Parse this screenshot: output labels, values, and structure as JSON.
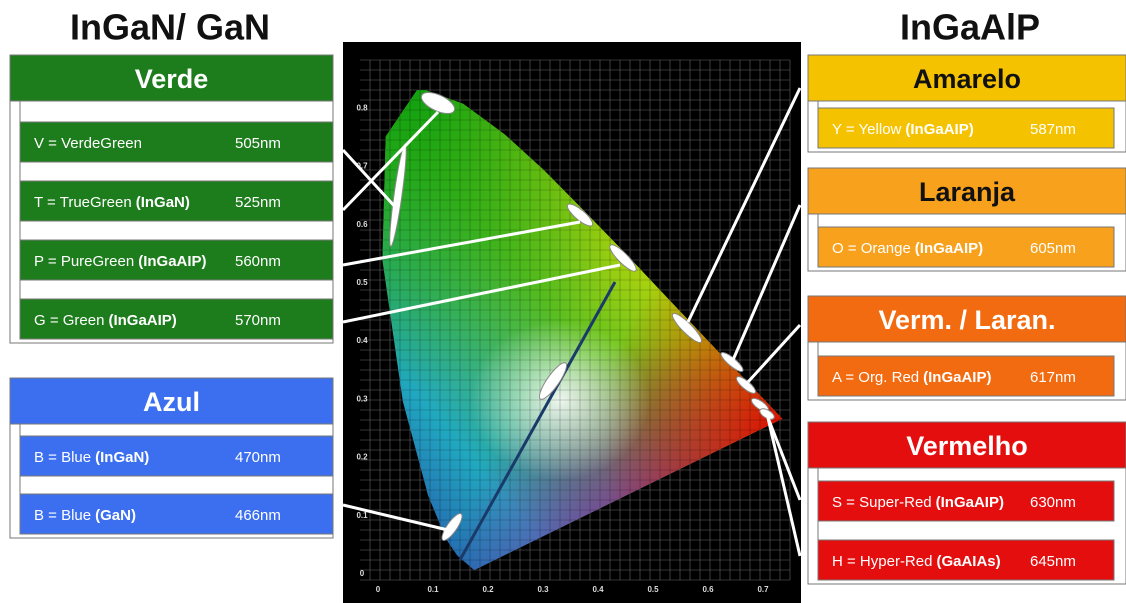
{
  "left_title": "InGaN/ GaN",
  "right_title": "InGaAlP",
  "groups": [
    {
      "title": "Verde",
      "items": [
        {
          "label": "V = VerdeGreen",
          "wavelength": "505nm"
        },
        {
          "label": "T = TrueGreen",
          "material": "(InGaN)",
          "wavelength": "525nm"
        },
        {
          "label": "P = PureGreen",
          "material": "(InGaAIP)",
          "wavelength": "560nm"
        },
        {
          "label": "G = Green",
          "material": "(InGaAIP)",
          "wavelength": "570nm"
        }
      ]
    },
    {
      "title": "Azul",
      "items": [
        {
          "label": "B = Blue",
          "material": "(InGaN)",
          "wavelength": "470nm"
        },
        {
          "label": "B = Blue",
          "material": "(GaN)",
          "wavelength": "466nm"
        }
      ]
    },
    {
      "title": "Amarelo",
      "items": [
        {
          "label": "Y = Yellow",
          "material": "(InGaAIP)",
          "wavelength": "587nm"
        }
      ]
    },
    {
      "title": "Laranja",
      "items": [
        {
          "label": "O = Orange",
          "material": "(InGaAIP)",
          "wavelength": "605nm"
        }
      ]
    },
    {
      "title": "Verm. / Laran.",
      "items": [
        {
          "label": "A = Org. Red",
          "material": "(InGaAIP)",
          "wavelength": "617nm"
        }
      ]
    },
    {
      "title": "Vermelho",
      "items": [
        {
          "label": "S = Super-Red",
          "material": "(InGaAIP)",
          "wavelength": "630nm"
        },
        {
          "label": "H = Hyper-Red",
          "material": "(GaAIAs)",
          "wavelength": "645nm"
        }
      ]
    }
  ],
  "diagram": {
    "x_ticks": [
      "0",
      "0.1",
      "0.2",
      "0.3",
      "0.4",
      "0.5",
      "0.6",
      "0.7"
    ],
    "y_ticks": [
      "0",
      "0.1",
      "0.2",
      "0.3",
      "0.4",
      "0.5",
      "0.6",
      "0.7",
      "0.8"
    ]
  }
}
